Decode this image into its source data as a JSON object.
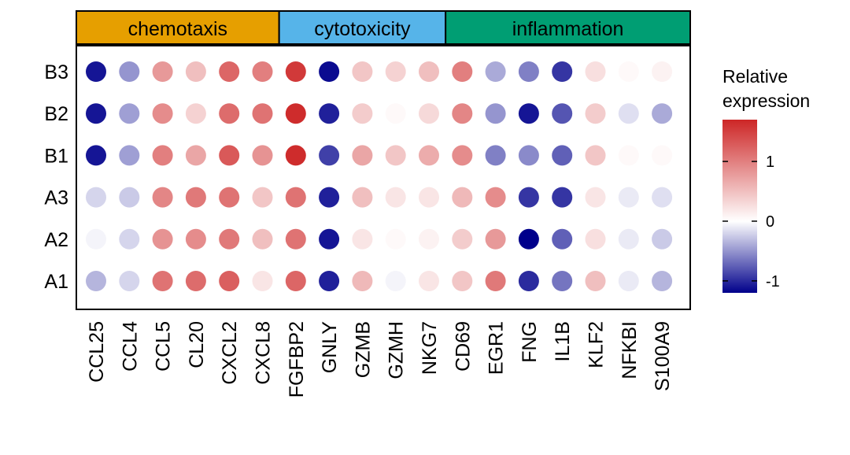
{
  "chart_data": {
    "type": "dot_heatmap",
    "groups": [
      {
        "label": "chemotaxis",
        "color": "#E69F00",
        "columns": [
          "CCL25",
          "CCL4",
          "CCL5",
          "CL20",
          "CXCL2",
          "CXCL8"
        ]
      },
      {
        "label": "cytotoxicity",
        "color": "#56B4E9",
        "columns": [
          "FGFBP2",
          "GNLY",
          "GZMB",
          "GZMH",
          "NKG7"
        ]
      },
      {
        "label": "inflammation",
        "color": "#009E73",
        "columns": [
          "CD69",
          "EGR1",
          "FNG",
          "IL1B",
          "KLF2",
          "NFKBI",
          "S100A9"
        ]
      }
    ],
    "columns": [
      "CCL25",
      "CCL4",
      "CCL5",
      "CL20",
      "CXCL2",
      "CXCL8",
      "FGFBP2",
      "GNLY",
      "GZMB",
      "GZMH",
      "NKG7",
      "CD69",
      "EGR1",
      "FNG",
      "IL1B",
      "KLF2",
      "NFKBI",
      "S100A9"
    ],
    "rows": [
      "B3",
      "B2",
      "B1",
      "A3",
      "A2",
      "A1"
    ],
    "values": [
      [
        -1.1,
        -0.5,
        0.8,
        0.5,
        1.2,
        1.0,
        1.55,
        -1.15,
        0.45,
        0.35,
        0.5,
        1.0,
        -0.4,
        -0.6,
        -0.95,
        0.25,
        0.05,
        0.1
      ],
      [
        -1.1,
        -0.45,
        0.9,
        0.35,
        1.15,
        1.1,
        1.65,
        -1.05,
        0.4,
        0.05,
        0.3,
        0.95,
        -0.5,
        -1.1,
        -0.8,
        0.4,
        -0.15,
        -0.4
      ],
      [
        -1.1,
        -0.45,
        1.0,
        0.7,
        1.3,
        0.85,
        1.65,
        -0.9,
        0.7,
        0.45,
        0.65,
        0.9,
        -0.6,
        -0.55,
        -0.75,
        0.45,
        0.05,
        0.05
      ],
      [
        -0.2,
        -0.25,
        0.95,
        1.05,
        1.1,
        0.45,
        1.1,
        -1.05,
        0.5,
        0.2,
        0.2,
        0.55,
        0.9,
        -0.95,
        -0.95,
        0.2,
        -0.1,
        -0.15
      ],
      [
        -0.05,
        -0.2,
        0.85,
        0.9,
        1.05,
        0.5,
        1.1,
        -1.1,
        0.2,
        0.05,
        0.1,
        0.4,
        0.8,
        -1.25,
        -0.75,
        0.25,
        -0.1,
        -0.25
      ],
      [
        -0.35,
        -0.2,
        1.1,
        1.15,
        1.25,
        0.2,
        1.2,
        -1.05,
        0.55,
        -0.05,
        0.2,
        0.45,
        1.05,
        -1.0,
        -0.65,
        0.5,
        -0.1,
        -0.35
      ]
    ],
    "legend": {
      "title": [
        "Relative",
        "expression"
      ],
      "ticks": [
        1,
        0,
        -1
      ],
      "range": [
        -1.2,
        1.7
      ],
      "gradient": [
        "#00008B",
        "#FFFFFF",
        "#CD2626"
      ],
      "placement": "right"
    }
  }
}
